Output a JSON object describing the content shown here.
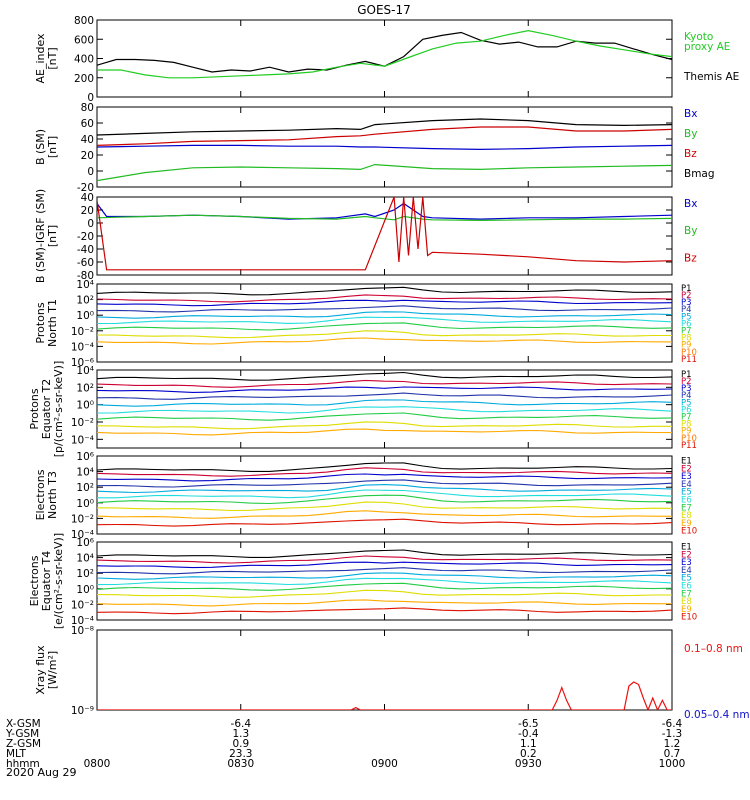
{
  "title": "GOES-17",
  "date": "2020 Aug 29",
  "time_axis": {
    "start_min": 0,
    "end_min": 120,
    "unit": "minutes after 08:00"
  },
  "footer": {
    "row_labels": [
      "X-GSM",
      "Y-GSM",
      "Z-GSM",
      "MLT",
      "hhmm"
    ],
    "columns": [
      {
        "t": 0,
        "hhmm": "0800",
        "X": "",
        "Y": "",
        "Z": "",
        "MLT": ""
      },
      {
        "t": 30,
        "hhmm": "0830",
        "X": "-6.4",
        "Y": "1.3",
        "Z": "0.9",
        "MLT": "23.3"
      },
      {
        "t": 60,
        "hhmm": "0900",
        "X": "",
        "Y": "",
        "Z": "",
        "MLT": ""
      },
      {
        "t": 90,
        "hhmm": "0930",
        "X": "-6.5",
        "Y": "-0.4",
        "Z": "1.1",
        "MLT": "0.2"
      },
      {
        "t": 120,
        "hhmm": "1000",
        "X": "-6.4",
        "Y": "-1.3",
        "Z": "1.2",
        "MLT": "0.7"
      }
    ]
  },
  "colors": {
    "p": [
      "#000000",
      "#cc0033",
      "#0000cc",
      "#2233aa",
      "#00aadd",
      "#22dddd",
      "#22cc44",
      "#dddd00",
      "#ffaa00",
      "#ff7700",
      "#dd1100"
    ],
    "e": [
      "#000000",
      "#cc0033",
      "#0000cc",
      "#2233aa",
      "#00aadd",
      "#22dddd",
      "#22cc44",
      "#dddd00",
      "#ffaa00",
      "#dd1100"
    ]
  },
  "chart_data": [
    {
      "id": "ae",
      "type": "line",
      "ylabel": "AE_index\n[nT]",
      "yscale": "linear",
      "ylim": [
        0,
        800
      ],
      "yticks": [
        0,
        200,
        400,
        600,
        800
      ],
      "legend": [
        {
          "text": "Kyoto",
          "color": "#22cc22"
        },
        {
          "text": "proxy AE",
          "color": "#22cc22"
        },
        {
          "text": "Themis AE",
          "color": "#000000"
        }
      ],
      "series": [
        {
          "name": "Themis AE",
          "color": "#000000",
          "x": [
            0,
            4,
            8,
            12,
            16,
            20,
            24,
            28,
            32,
            36,
            40,
            44,
            48,
            52,
            56,
            60,
            64,
            68,
            72,
            76,
            80,
            84,
            88,
            92,
            96,
            100,
            104,
            108,
            112,
            116,
            120
          ],
          "y": [
            330,
            390,
            390,
            380,
            360,
            310,
            260,
            280,
            270,
            310,
            260,
            290,
            280,
            330,
            370,
            320,
            420,
            600,
            640,
            670,
            590,
            550,
            570,
            520,
            520,
            580,
            560,
            560,
            500,
            440,
            390
          ]
        },
        {
          "name": "Kyoto proxy AE",
          "color": "#22cc22",
          "x": [
            0,
            5,
            10,
            15,
            20,
            25,
            30,
            35,
            40,
            45,
            50,
            55,
            60,
            65,
            70,
            75,
            80,
            85,
            90,
            95,
            100,
            105,
            110,
            115,
            120
          ],
          "y": [
            280,
            280,
            230,
            200,
            200,
            210,
            220,
            230,
            240,
            260,
            310,
            350,
            320,
            410,
            500,
            560,
            580,
            640,
            690,
            640,
            580,
            530,
            490,
            450,
            420
          ]
        }
      ]
    },
    {
      "id": "bsm",
      "type": "line",
      "ylabel": "B (SM)\n[nT]",
      "yscale": "linear",
      "ylim": [
        -20,
        80
      ],
      "yticks": [
        -20,
        0,
        20,
        40,
        60,
        80
      ],
      "legend": [
        {
          "text": "Bx",
          "color": "#0000cc"
        },
        {
          "text": "By",
          "color": "#22bb22"
        },
        {
          "text": "Bz",
          "color": "#cc0000"
        },
        {
          "text": "Bmag",
          "color": "#000000"
        }
      ],
      "series": [
        {
          "name": "Bmag",
          "color": "#000000",
          "x": [
            0,
            10,
            20,
            30,
            40,
            50,
            55,
            58,
            70,
            80,
            90,
            100,
            110,
            120
          ],
          "y": [
            45,
            47,
            49,
            50,
            51,
            53,
            52,
            58,
            63,
            65,
            63,
            58,
            57,
            58
          ]
        },
        {
          "name": "Bz",
          "color": "#cc0000",
          "x": [
            0,
            10,
            20,
            30,
            40,
            50,
            55,
            58,
            70,
            80,
            90,
            100,
            110,
            120
          ],
          "y": [
            32,
            34,
            37,
            38,
            39,
            43,
            44,
            46,
            52,
            55,
            55,
            50,
            50,
            52
          ]
        },
        {
          "name": "Bx",
          "color": "#0000cc",
          "x": [
            0,
            10,
            20,
            30,
            40,
            50,
            55,
            58,
            70,
            80,
            90,
            100,
            110,
            120
          ],
          "y": [
            30,
            31,
            32,
            32,
            31,
            31,
            30,
            30,
            28,
            27,
            28,
            30,
            31,
            32
          ]
        },
        {
          "name": "By",
          "color": "#22bb22",
          "x": [
            0,
            5,
            10,
            20,
            30,
            40,
            50,
            55,
            58,
            70,
            80,
            90,
            100,
            110,
            120
          ],
          "y": [
            -12,
            -7,
            -2,
            4,
            5,
            4,
            3,
            2,
            8,
            3,
            2,
            4,
            5,
            6,
            7
          ]
        }
      ]
    },
    {
      "id": "bigrf",
      "type": "line",
      "ylabel": "B (SM)-IGRF (SM)\n[nT]",
      "yscale": "linear",
      "ylim": [
        -80,
        40
      ],
      "yticks": [
        -80,
        -60,
        -40,
        -20,
        0,
        20,
        40
      ],
      "legend": [
        {
          "text": "Bx",
          "color": "#0000cc"
        },
        {
          "text": "By",
          "color": "#22bb22"
        },
        {
          "text": "Bz",
          "color": "#cc0000"
        }
      ],
      "series": [
        {
          "name": "Bx",
          "color": "#0000cc",
          "x": [
            0,
            2,
            10,
            20,
            30,
            40,
            50,
            56,
            58,
            62,
            64,
            66,
            68,
            70,
            80,
            90,
            100,
            110,
            120
          ],
          "y": [
            30,
            10,
            10,
            12,
            10,
            6,
            8,
            14,
            10,
            20,
            30,
            20,
            10,
            8,
            6,
            8,
            8,
            10,
            12
          ]
        },
        {
          "name": "By",
          "color": "#22bb22",
          "x": [
            0,
            10,
            20,
            30,
            40,
            50,
            56,
            58,
            62,
            64,
            66,
            68,
            70,
            80,
            90,
            100,
            110,
            120
          ],
          "y": [
            8,
            10,
            12,
            10,
            7,
            6,
            10,
            8,
            5,
            10,
            8,
            6,
            5,
            4,
            5,
            6,
            6,
            7
          ]
        },
        {
          "name": "Bz",
          "color": "#cc0000",
          "x": [
            0,
            2,
            20,
            40,
            56,
            62,
            63,
            64,
            65,
            66,
            67,
            68,
            69,
            70,
            80,
            90,
            100,
            110,
            120
          ],
          "y": [
            35,
            -72,
            -72,
            -72,
            -72,
            40,
            -60,
            40,
            -50,
            40,
            -40,
            40,
            -50,
            -45,
            -48,
            -52,
            -58,
            -60,
            -58
          ]
        }
      ]
    },
    {
      "id": "p1",
      "type": "line",
      "ylabel": "Protons\nNorth T1",
      "yscale": "log",
      "ylim": [
        -6,
        4
      ],
      "yticks": [
        -6,
        -4,
        -2,
        0,
        2,
        4
      ],
      "tick_labels": [
        "10⁻⁶",
        "10⁻⁴",
        "10⁻²",
        "10⁰",
        "10²",
        "10⁴"
      ],
      "channels": [
        "P1",
        "P2",
        "P3",
        "P4",
        "P5",
        "P6",
        "P7",
        "P8",
        "P9",
        "P10",
        "P11"
      ],
      "base_log": [
        2.8,
        1.9,
        1.4,
        0.6,
        -0.2,
        -0.9,
        -1.7,
        -2.7,
        -3.5,
        null,
        null
      ],
      "bump_log": 0.6
    },
    {
      "id": "p2",
      "type": "line",
      "ylabel": "Protons\nEquator T2\n[p/(cm²-s-sr-keV)]",
      "yscale": "log",
      "ylim": [
        -5,
        4
      ],
      "yticks": [
        -4,
        -2,
        0,
        2,
        4
      ],
      "tick_labels": [
        "10⁻⁴",
        "10⁻²",
        "10⁰",
        "10²",
        "10⁴"
      ],
      "channels": [
        "P1",
        "P2",
        "P3",
        "P4",
        "P5",
        "P6",
        "P7",
        "P8",
        "P9",
        "P10",
        "P11"
      ],
      "base_log": [
        3.0,
        2.2,
        1.6,
        0.8,
        0.0,
        -0.8,
        -1.6,
        -2.6,
        -3.3,
        null,
        null
      ],
      "bump_log": 0.5
    },
    {
      "id": "e1",
      "type": "line",
      "ylabel": "Electrons\nNorth T3",
      "yscale": "log",
      "ylim": [
        -4,
        6
      ],
      "yticks": [
        -4,
        -2,
        0,
        2,
        4,
        6
      ],
      "tick_labels": [
        "10⁻⁴",
        "10⁻²",
        "10⁰",
        "10²",
        "10⁴",
        "10⁶"
      ],
      "channels": [
        "E1",
        "E2",
        "E3",
        "E4",
        "E5",
        "E6",
        "E7",
        "E8",
        "E9",
        "E10"
      ],
      "base_log": [
        4.2,
        3.6,
        3.0,
        2.2,
        1.5,
        0.8,
        0.1,
        -0.8,
        -1.8,
        -2.8
      ],
      "bump_log": 0.8
    },
    {
      "id": "e2",
      "type": "line",
      "ylabel": "Electrons\nEquator T4\n[e/(cm²-s-sr-keV)]",
      "yscale": "log",
      "ylim": [
        -4,
        6
      ],
      "yticks": [
        -4,
        -2,
        0,
        2,
        4,
        6
      ],
      "tick_labels": [
        "10⁻⁴",
        "10⁻²",
        "10⁰",
        "10²",
        "10⁴",
        "10⁶"
      ],
      "channels": [
        "E1",
        "E2",
        "E3",
        "E4",
        "E5",
        "E6",
        "E7",
        "E8",
        "E9",
        "E10"
      ],
      "base_log": [
        4.2,
        3.5,
        2.9,
        2.1,
        1.4,
        0.7,
        0.0,
        -0.9,
        -2.0,
        -3.0
      ],
      "bump_log": 0.6
    },
    {
      "id": "xray",
      "type": "line",
      "ylabel": "Xray flux\n[W/m²]",
      "yscale": "log",
      "ylim": [
        -9,
        -8
      ],
      "yticks": [
        -9,
        -8
      ],
      "tick_labels": [
        "10⁻⁹",
        "10⁻⁸"
      ],
      "legend": [
        {
          "text": "0.1–0.8 nm",
          "color": "#ee1111"
        },
        {
          "text": "0.05–0.4 nm",
          "color": "#1111cc"
        }
      ],
      "series": [
        {
          "name": "0.1-0.8 nm",
          "color": "#ee1111",
          "x": [
            0,
            53,
            54,
            55,
            56,
            95,
            96,
            97,
            98,
            99,
            100,
            110,
            111,
            112,
            113,
            114,
            115,
            116,
            117,
            118,
            119,
            120
          ],
          "y": [
            -9,
            -9,
            -8.97,
            -9,
            -9,
            -9,
            -8.88,
            -8.72,
            -8.88,
            -9,
            -9,
            -9,
            -8.7,
            -8.65,
            -8.68,
            -8.85,
            -9,
            -8.85,
            -9,
            -8.88,
            -9,
            -9
          ]
        }
      ]
    }
  ]
}
